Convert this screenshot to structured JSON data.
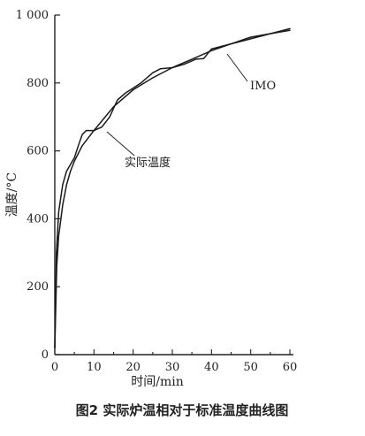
{
  "chart_data": {
    "type": "line",
    "caption": "图2  实际炉温相对于标准温度曲线图",
    "xlabel": "时间/min",
    "ylabel": "温度/°C",
    "xlim": [
      0,
      60
    ],
    "ylim": [
      0,
      1000
    ],
    "xticks": [
      0,
      10,
      20,
      30,
      40,
      50,
      60
    ],
    "yticks": [
      0,
      200,
      400,
      600,
      800,
      1000
    ],
    "xtick_labels": [
      "0",
      "10",
      "20",
      "30",
      "40",
      "50",
      "60"
    ],
    "ytick_labels": [
      "0",
      "200",
      "400",
      "600",
      "800",
      "1 000"
    ],
    "grid": false,
    "series": [
      {
        "name": "IMO",
        "color": "#1a1a1a",
        "x": [
          0,
          0.5,
          1,
          2,
          3,
          4,
          5,
          7,
          10,
          15,
          20,
          25,
          30,
          35,
          40,
          45,
          50,
          55,
          60
        ],
        "y": [
          20,
          260,
          350,
          440,
          500,
          540,
          570,
          615,
          660,
          730,
          780,
          815,
          845,
          870,
          895,
          915,
          930,
          945,
          955
        ]
      },
      {
        "name": "实际温度",
        "color": "#1a1a1a",
        "x": [
          0,
          0.4,
          1,
          2,
          3,
          4,
          5,
          6,
          7,
          8,
          10,
          12,
          14,
          16,
          18,
          20,
          22,
          25,
          27,
          30,
          33,
          36,
          38,
          40,
          45,
          50,
          55,
          60
        ],
        "y": [
          20,
          300,
          420,
          500,
          540,
          560,
          580,
          615,
          648,
          660,
          660,
          670,
          700,
          750,
          770,
          785,
          800,
          830,
          842,
          845,
          855,
          870,
          872,
          900,
          915,
          935,
          945,
          960
        ]
      }
    ],
    "annotations": [
      {
        "text": "IMO",
        "series": "IMO"
      },
      {
        "text": "实际温度",
        "series": "实际温度"
      }
    ]
  }
}
